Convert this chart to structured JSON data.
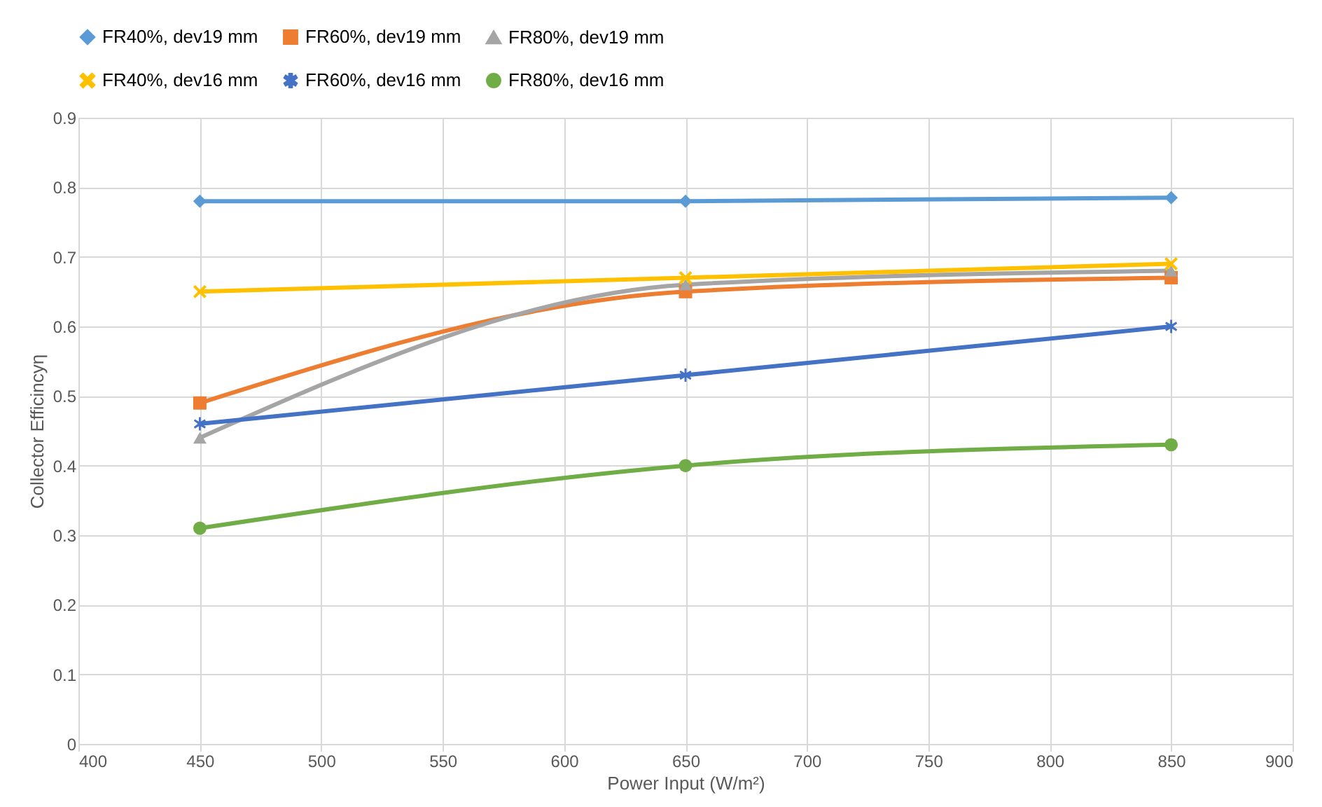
{
  "chart_data": {
    "type": "line",
    "xlabel": "Power Input (W/m²)",
    "ylabel": "Collector Efficincyη",
    "x": [
      450,
      650,
      850
    ],
    "xlim": [
      400,
      900
    ],
    "xticks": [
      400,
      450,
      500,
      550,
      600,
      650,
      700,
      750,
      800,
      850,
      900
    ],
    "ylim": [
      0,
      0.9
    ],
    "yticks": [
      0,
      0.1,
      0.2,
      0.3,
      0.4,
      0.5,
      0.6,
      0.7,
      0.8,
      0.9
    ],
    "grid": true,
    "legend": "top",
    "line_style": "solid",
    "series": [
      {
        "name": "FR40%, dev19 mm",
        "color": "#5b9bd5",
        "marker": "diamond",
        "values": [
          0.78,
          0.78,
          0.785
        ]
      },
      {
        "name": "FR60%, dev19 mm",
        "color": "#ed7d31",
        "marker": "square",
        "values": [
          0.49,
          0.65,
          0.67
        ]
      },
      {
        "name": "FR80%, dev19 mm",
        "color": "#a5a5a5",
        "marker": "triangle",
        "values": [
          0.44,
          0.66,
          0.68
        ]
      },
      {
        "name": "FR40%, dev16 mm",
        "color": "#ffc000",
        "marker": "cross",
        "values": [
          0.65,
          0.67,
          0.69
        ]
      },
      {
        "name": "FR60%, dev16 mm",
        "color": "#4472c4",
        "marker": "star",
        "values": [
          0.46,
          0.53,
          0.6
        ]
      },
      {
        "name": "FR80%, dev16 mm",
        "color": "#70ad47",
        "marker": "circle",
        "values": [
          0.31,
          0.4,
          0.43
        ]
      }
    ]
  }
}
